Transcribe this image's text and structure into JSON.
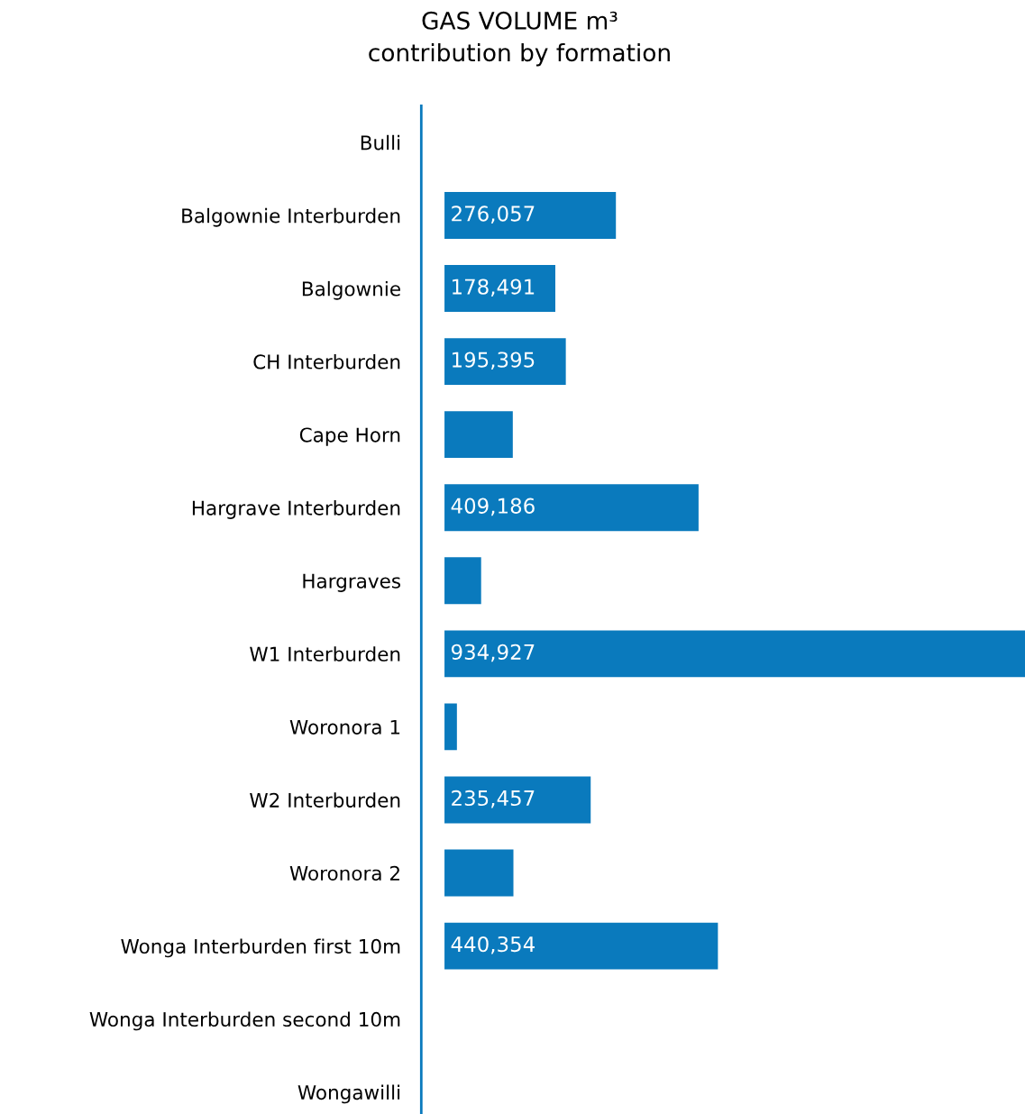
{
  "chart_data": {
    "type": "bar",
    "orientation": "horizontal",
    "title": "GAS VOLUME m³\ncontribution by formation",
    "categories": [
      "Bulli",
      "Balgownie Interburden",
      "Balgownie",
      "CH Interburden",
      "Cape Horn",
      "Hargrave Interburden",
      "Hargraves",
      "W1 Interburden",
      "Woronora 1",
      "W2 Interburden",
      "Woronora 2",
      "Wonga Interburden first 10m",
      "Wonga Interburden second 10m",
      "Wongawilli"
    ],
    "values": [
      null,
      276057,
      178491,
      195395,
      110000,
      409186,
      59000,
      934927,
      20000,
      235457,
      111000,
      440354,
      null,
      null
    ],
    "value_labels": [
      null,
      "276,057",
      "178,491",
      "195,395",
      null,
      "409,186",
      null,
      "934,927",
      null,
      "235,457",
      null,
      "440,354",
      null,
      null
    ],
    "color": "#0a7abd",
    "grid": false,
    "legend": false
  }
}
